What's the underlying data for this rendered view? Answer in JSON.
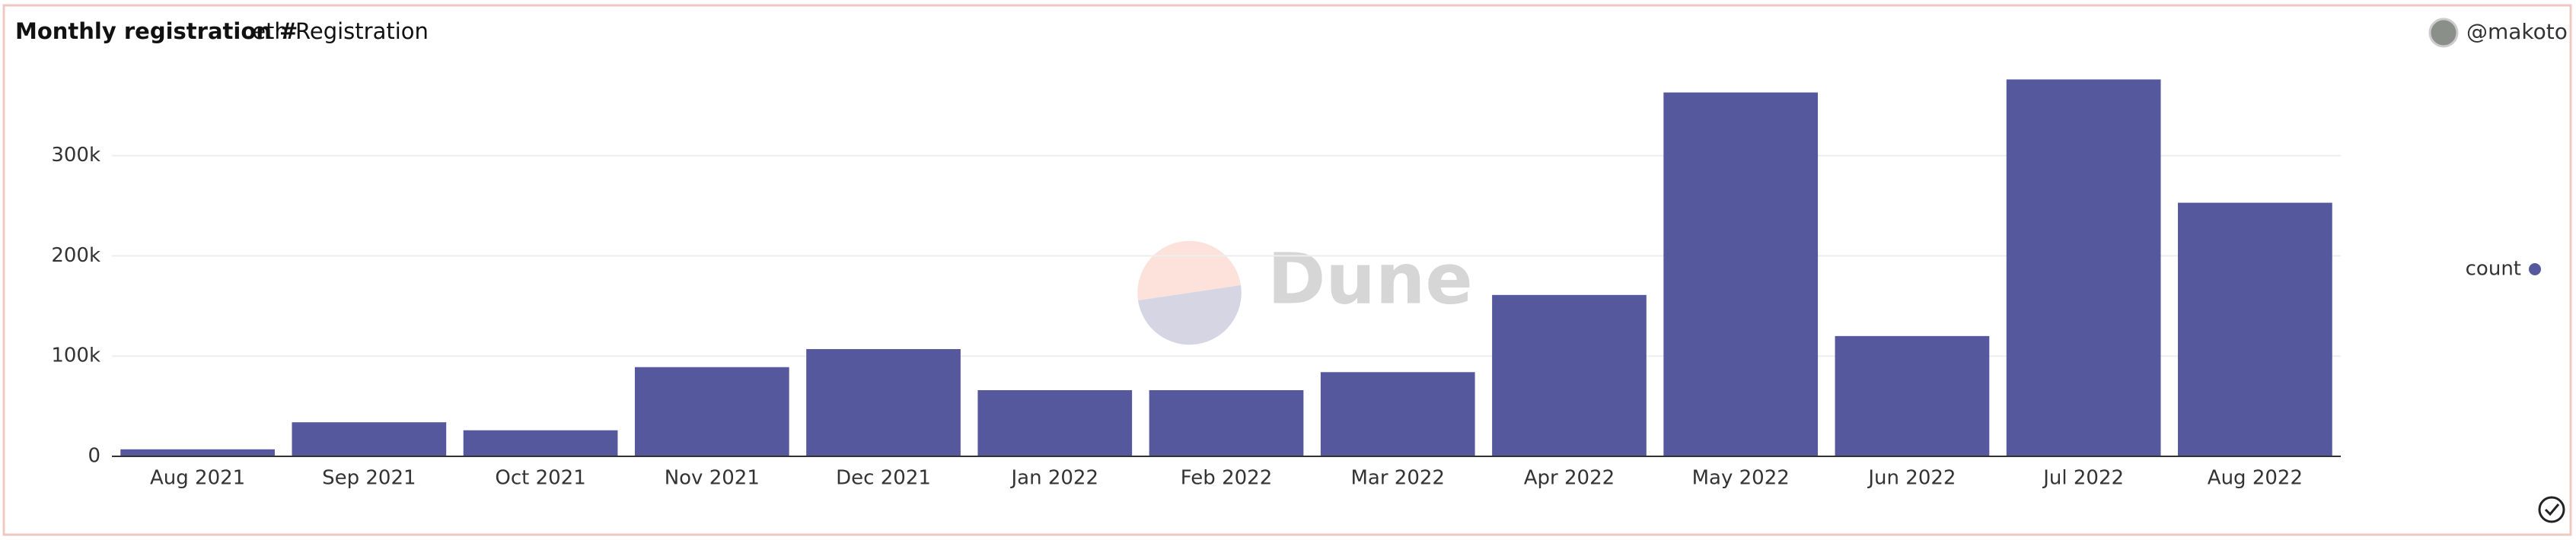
{
  "chart_data": {
    "type": "bar",
    "title": "Monthly registration #",
    "subtitle": ".eth Registration",
    "author": "@makoto",
    "watermark": "Dune",
    "categories": [
      "Aug 2021",
      "Sep 2021",
      "Oct 2021",
      "Nov 2021",
      "Dec 2021",
      "Jan 2022",
      "Feb 2022",
      "Mar 2022",
      "Apr 2022",
      "May 2022",
      "Jun 2022",
      "Jul 2022",
      "Aug 2022"
    ],
    "series": [
      {
        "name": "count",
        "color": "#55589d",
        "values": [
          7000,
          34000,
          26000,
          89000,
          107000,
          66000,
          66000,
          84000,
          161000,
          363000,
          120000,
          376000,
          253000
        ]
      }
    ],
    "ylim": [
      0,
      390000
    ],
    "yticks": [
      0,
      {
        "value": 100000,
        "label": "100k"
      },
      {
        "value": 200000,
        "label": "200k"
      },
      {
        "value": 300000,
        "label": "300k"
      }
    ],
    "grid": true,
    "legend": "right"
  }
}
